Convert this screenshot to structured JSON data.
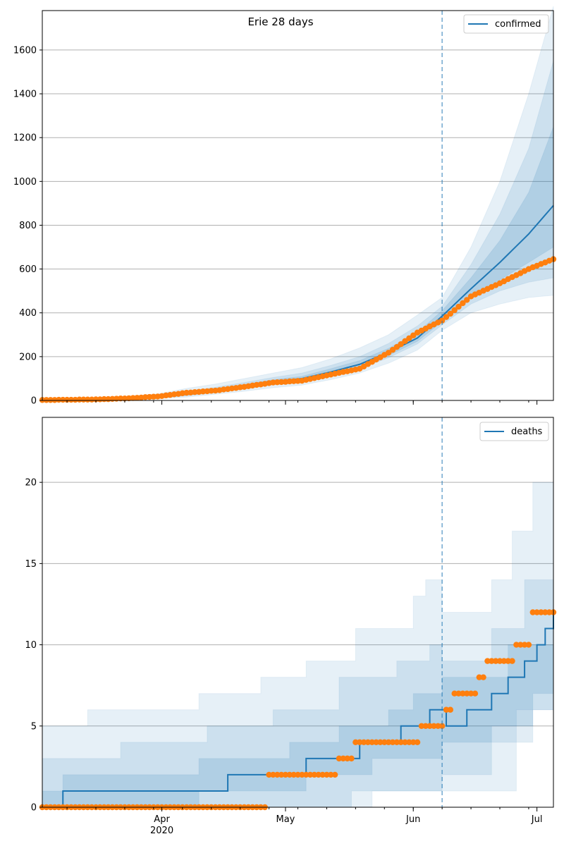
{
  "colors": {
    "model": "#1f77b4",
    "observed": "#ff7f0e",
    "band": "#1f77b4",
    "cutoff": "#1f77b4",
    "grid": "#b0b0b0"
  },
  "chart_data": [
    {
      "type": "line",
      "title": "Erie 28 days",
      "xlabel": "",
      "ylabel": "",
      "x_range": [
        "2020-03-03",
        "2020-07-05"
      ],
      "x_ticks": [
        "Apr",
        "May",
        "Jun",
        "Jul"
      ],
      "x_tick_sublabel": "2020",
      "ylim": [
        0,
        1780
      ],
      "y_ticks": [
        0,
        200,
        400,
        600,
        800,
        1000,
        1200,
        1400,
        1600
      ],
      "grid": "y",
      "legend": {
        "position": "top-right",
        "entries": [
          "confirmed"
        ]
      },
      "cutoff_date": "2020-06-08",
      "series": [
        {
          "name": "confirmed",
          "kind": "model median",
          "x": [
            "2020-03-03",
            "2020-03-10",
            "2020-03-17",
            "2020-03-24",
            "2020-03-31",
            "2020-04-07",
            "2020-04-14",
            "2020-04-21",
            "2020-04-28",
            "2020-05-05",
            "2020-05-12",
            "2020-05-19",
            "2020-05-26",
            "2020-06-02",
            "2020-06-08",
            "2020-06-15",
            "2020-06-22",
            "2020-06-29",
            "2020-07-05"
          ],
          "values": [
            0,
            2,
            4,
            8,
            15,
            28,
            45,
            65,
            85,
            100,
            130,
            165,
            220,
            285,
            385,
            510,
            630,
            760,
            890
          ]
        },
        {
          "kind": "observed",
          "x": [
            "2020-03-03",
            "2020-03-10",
            "2020-03-17",
            "2020-03-24",
            "2020-03-31",
            "2020-04-07",
            "2020-04-14",
            "2020-04-21",
            "2020-04-28",
            "2020-05-05",
            "2020-05-12",
            "2020-05-19",
            "2020-05-26",
            "2020-06-02",
            "2020-06-08",
            "2020-06-15",
            "2020-06-22",
            "2020-06-29",
            "2020-07-05"
          ],
          "values": [
            2,
            3,
            5,
            10,
            18,
            35,
            45,
            62,
            82,
            90,
            118,
            145,
            218,
            310,
            365,
            475,
            535,
            600,
            645
          ]
        }
      ],
      "bands": [
        {
          "lower": [
            0,
            0,
            1,
            3,
            8,
            15,
            28,
            42,
            58,
            70,
            95,
            125,
            170,
            230,
            320,
            400,
            440,
            470,
            480
          ],
          "upper": [
            4,
            6,
            10,
            18,
            30,
            55,
            75,
            100,
            125,
            150,
            190,
            240,
            300,
            390,
            470,
            700,
            1000,
            1400,
            1800
          ]
        },
        {
          "lower": [
            0,
            1,
            2,
            5,
            11,
            21,
            36,
            53,
            71,
            84,
            112,
            145,
            195,
            258,
            345,
            440,
            500,
            540,
            560
          ],
          "upper": [
            3,
            4,
            7,
            13,
            22,
            40,
            60,
            82,
            105,
            125,
            160,
            200,
            260,
            340,
            430,
            620,
            850,
            1150,
            1550
          ]
        },
        {
          "lower": [
            0,
            1,
            3,
            6,
            13,
            24,
            40,
            58,
            78,
            92,
            120,
            155,
            205,
            270,
            360,
            470,
            550,
            630,
            700
          ],
          "upper": [
            2,
            3,
            5,
            10,
            18,
            33,
            52,
            73,
            95,
            110,
            145,
            182,
            238,
            310,
            410,
            560,
            730,
            950,
            1250
          ]
        }
      ]
    },
    {
      "type": "line",
      "title": "",
      "xlabel": "",
      "ylabel": "",
      "x_range": [
        "2020-03-03",
        "2020-07-05"
      ],
      "x_ticks": [
        "Apr",
        "May",
        "Jun",
        "Jul"
      ],
      "x_tick_sublabel": "2020",
      "ylim": [
        0,
        24
      ],
      "y_ticks": [
        0,
        5,
        10,
        15,
        20
      ],
      "grid": "y",
      "legend": {
        "position": "top-right",
        "entries": [
          "deaths"
        ]
      },
      "cutoff_date": "2020-06-08",
      "series": [
        {
          "name": "deaths",
          "kind": "model median (step)",
          "steps": [
            [
              "2020-03-03",
              0
            ],
            [
              "2020-03-08",
              1
            ],
            [
              "2020-04-17",
              2
            ],
            [
              "2020-05-06",
              3
            ],
            [
              "2020-05-19",
              4
            ],
            [
              "2020-05-29",
              5
            ],
            [
              "2020-06-05",
              6
            ],
            [
              "2020-06-09",
              5
            ],
            [
              "2020-06-14",
              6
            ],
            [
              "2020-06-20",
              7
            ],
            [
              "2020-06-24",
              8
            ],
            [
              "2020-06-28",
              9
            ],
            [
              "2020-07-01",
              10
            ],
            [
              "2020-07-03",
              11
            ],
            [
              "2020-07-05",
              12
            ]
          ]
        },
        {
          "kind": "observed (step)",
          "steps": [
            [
              "2020-03-03",
              0
            ],
            [
              "2020-04-27",
              2
            ],
            [
              "2020-05-14",
              3
            ],
            [
              "2020-05-18",
              4
            ],
            [
              "2020-06-03",
              5
            ],
            [
              "2020-06-09",
              6
            ],
            [
              "2020-06-11",
              7
            ],
            [
              "2020-06-17",
              8
            ],
            [
              "2020-06-19",
              9
            ],
            [
              "2020-06-26",
              10
            ],
            [
              "2020-06-30",
              12
            ],
            [
              "2020-07-05",
              12
            ]
          ]
        }
      ],
      "bands": [
        {
          "lower": [
            [
              "2020-03-03",
              0
            ],
            [
              "2020-05-22",
              1
            ],
            [
              "2020-06-26",
              6
            ],
            [
              "2020-07-05",
              7
            ]
          ],
          "upper": [
            [
              "2020-03-03",
              5
            ],
            [
              "2020-03-14",
              6
            ],
            [
              "2020-04-10",
              7
            ],
            [
              "2020-04-25",
              8
            ],
            [
              "2020-05-06",
              9
            ],
            [
              "2020-05-18",
              11
            ],
            [
              "2020-06-01",
              13
            ],
            [
              "2020-06-04",
              14
            ],
            [
              "2020-06-08",
              12
            ],
            [
              "2020-06-20",
              14
            ],
            [
              "2020-06-25",
              17
            ],
            [
              "2020-06-30",
              20
            ],
            [
              "2020-07-05",
              24
            ]
          ]
        },
        {
          "lower": [
            [
              "2020-03-03",
              0
            ],
            [
              "2020-05-03",
              0
            ],
            [
              "2020-05-17",
              1
            ],
            [
              "2020-06-08",
              2
            ],
            [
              "2020-06-20",
              4
            ],
            [
              "2020-06-30",
              6
            ],
            [
              "2020-07-05",
              7
            ]
          ],
          "upper": [
            [
              "2020-03-03",
              3
            ],
            [
              "2020-03-22",
              4
            ],
            [
              "2020-04-12",
              5
            ],
            [
              "2020-04-28",
              6
            ],
            [
              "2020-05-14",
              8
            ],
            [
              "2020-05-28",
              9
            ],
            [
              "2020-06-05",
              10
            ],
            [
              "2020-06-08",
              9
            ],
            [
              "2020-06-20",
              11
            ],
            [
              "2020-06-28",
              14
            ],
            [
              "2020-07-05",
              20
            ]
          ]
        },
        {
          "lower": [
            [
              "2020-03-03",
              0
            ],
            [
              "2020-04-10",
              1
            ],
            [
              "2020-05-06",
              2
            ],
            [
              "2020-05-22",
              3
            ],
            [
              "2020-06-08",
              4
            ],
            [
              "2020-06-20",
              5
            ],
            [
              "2020-06-30",
              7
            ],
            [
              "2020-07-05",
              8
            ]
          ],
          "upper": [
            [
              "2020-03-03",
              1
            ],
            [
              "2020-03-08",
              2
            ],
            [
              "2020-03-25",
              2
            ],
            [
              "2020-04-10",
              3
            ],
            [
              "2020-05-02",
              4
            ],
            [
              "2020-05-14",
              5
            ],
            [
              "2020-05-26",
              6
            ],
            [
              "2020-06-01",
              7
            ],
            [
              "2020-06-08",
              8
            ],
            [
              "2020-06-16",
              8
            ],
            [
              "2020-06-24",
              10
            ],
            [
              "2020-07-05",
              16
            ]
          ]
        }
      ]
    }
  ]
}
